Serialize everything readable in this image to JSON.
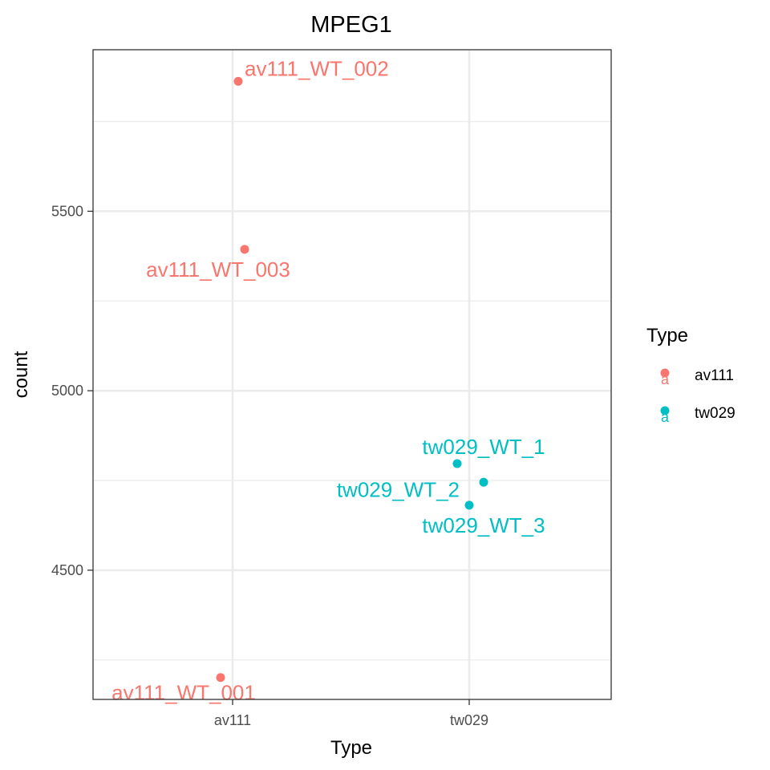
{
  "chart_data": {
    "type": "scatter",
    "title": "MPEG1",
    "xlabel": "Type",
    "ylabel": "count",
    "categories": [
      "av111",
      "tw029"
    ],
    "ylim": [
      4140,
      5950
    ],
    "y_ticks": [
      4500,
      5000,
      5500
    ],
    "grid": true,
    "legend": {
      "title": "Type",
      "position": "right",
      "entries": [
        {
          "label": "av111",
          "color": "#F8766D"
        },
        {
          "label": "tw029",
          "color": "#00BFC4"
        }
      ]
    },
    "series": [
      {
        "name": "av111",
        "color": "#F8766D",
        "points": [
          {
            "category": "av111",
            "y": 4201,
            "label": "av111_WT_001"
          },
          {
            "category": "av111",
            "y": 5862,
            "label": "av111_WT_002"
          },
          {
            "category": "av111",
            "y": 5394,
            "label": "av111_WT_003"
          }
        ]
      },
      {
        "name": "tw029",
        "color": "#00BFC4",
        "points": [
          {
            "category": "tw029",
            "y": 4797,
            "label": "tw029_WT_1"
          },
          {
            "category": "tw029",
            "y": 4745,
            "label": "tw029_WT_2"
          },
          {
            "category": "tw029",
            "y": 4681,
            "label": "tw029_WT_3"
          }
        ]
      }
    ]
  }
}
